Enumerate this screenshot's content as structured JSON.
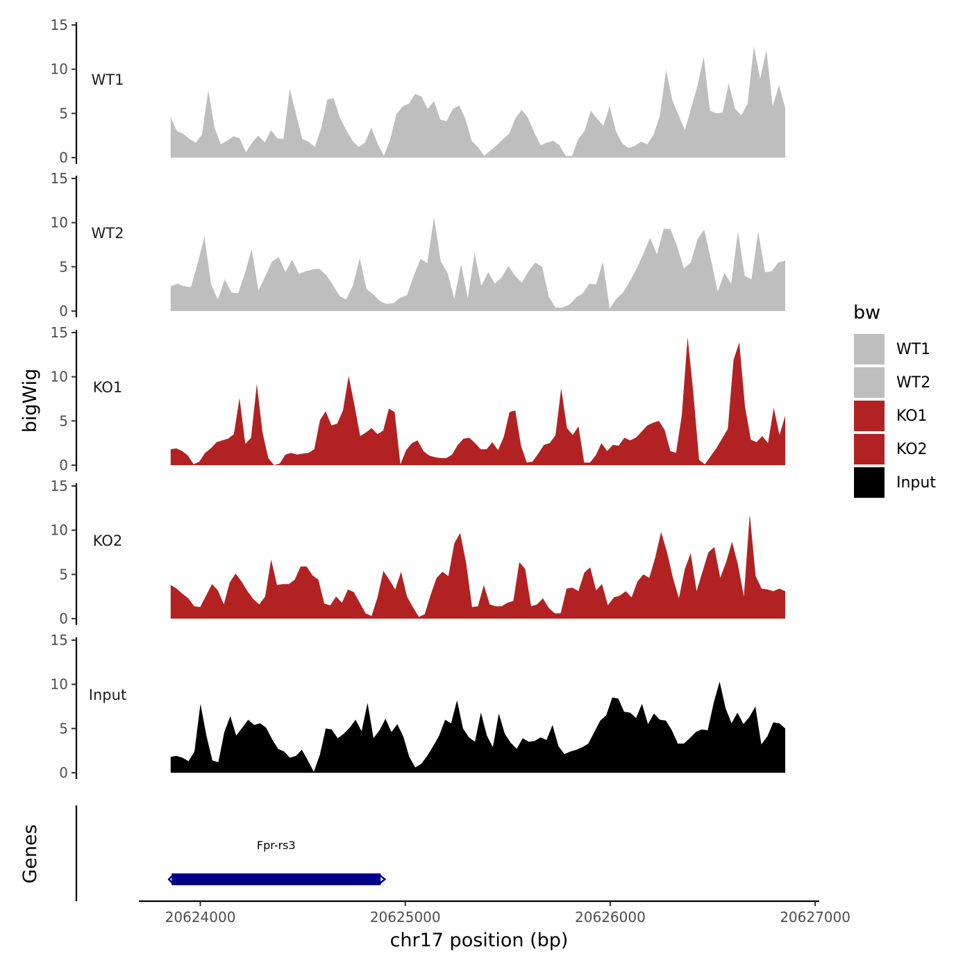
{
  "chart_data": {
    "type": "area",
    "ylabel": "bigWig",
    "xlabel": "chr17 position (bp)",
    "ylim": [
      0,
      15
    ],
    "xlim": [
      20623700,
      20627020
    ],
    "ytick_labels": [
      "0",
      "5",
      "10",
      "15"
    ],
    "x_ticks": [
      20624000,
      20625000,
      20626000,
      20627000
    ],
    "x_tick_labels": [
      "20624000",
      "20625000",
      "20626000",
      "20627000"
    ],
    "x_start": 20623855,
    "x_step": 30,
    "genes_label": "Genes",
    "legend": {
      "title": "bw",
      "placement": "right",
      "entries": [
        {
          "name": "WT1",
          "color": "#bebebe"
        },
        {
          "name": "WT2",
          "color": "#bebebe"
        },
        {
          "name": "KO1",
          "color": "#b22222"
        },
        {
          "name": "KO2",
          "color": "#b22222"
        },
        {
          "name": "Input",
          "color": "#000000"
        }
      ]
    },
    "series": [
      {
        "name": "WT1",
        "color": "#bebebe",
        "values": [
          4.6,
          3.0,
          2.7,
          2.1,
          1.7,
          2.6,
          7.6,
          3.4,
          1.5,
          1.9,
          2.4,
          2.2,
          0.6,
          1.7,
          2.5,
          1.7,
          3.1,
          2.2,
          2.1,
          7.8,
          4.9,
          2.1,
          1.8,
          1.2,
          3.3,
          6.6,
          6.7,
          4.5,
          3.1,
          1.9,
          1.2,
          1.7,
          3.4,
          1.6,
          0.2,
          2.0,
          4.9,
          5.8,
          6.1,
          7.2,
          6.9,
          5.5,
          6.4,
          4.3,
          4.1,
          5.5,
          5.9,
          4.4,
          1.9,
          1.2,
          0.2,
          0.8,
          1.4,
          2.1,
          2.7,
          4.5,
          5.4,
          4.5,
          2.8,
          1.4,
          1.7,
          1.9,
          1.4,
          0.2,
          0.2,
          2.1,
          3.0,
          5.3,
          4.4,
          3.6,
          5.8,
          3.0,
          1.6,
          1.1,
          1.3,
          1.8,
          1.5,
          2.6,
          4.7,
          9.9,
          6.5,
          4.8,
          3.1,
          5.6,
          8.1,
          11.4,
          5.3,
          5.0,
          5.1,
          8.4,
          5.5,
          4.8,
          6.1,
          12.6,
          8.9,
          12.2,
          5.8,
          8.2,
          5.6
        ]
      },
      {
        "name": "WT2",
        "color": "#bebebe",
        "values": [
          2.8,
          3.1,
          2.8,
          2.7,
          5.4,
          8.4,
          3.0,
          1.3,
          3.6,
          2.1,
          2.0,
          4.3,
          7.0,
          2.3,
          3.9,
          5.6,
          6.1,
          4.4,
          5.8,
          4.2,
          4.5,
          4.7,
          4.8,
          4.1,
          3.0,
          1.7,
          1.3,
          2.9,
          6.0,
          2.5,
          1.9,
          1.1,
          0.8,
          0.9,
          1.5,
          1.8,
          4.0,
          5.9,
          5.4,
          10.6,
          5.6,
          4.3,
          1.4,
          5.3,
          1.4,
          6.6,
          2.8,
          4.4,
          3.1,
          3.8,
          5.1,
          4.0,
          3.2,
          4.5,
          5.5,
          5.0,
          1.6,
          0.4,
          0.4,
          0.7,
          1.5,
          2.0,
          3.1,
          3.0,
          5.6,
          0.3,
          1.4,
          2.1,
          3.4,
          4.8,
          6.5,
          8.3,
          6.4,
          9.3,
          9.3,
          7.3,
          4.8,
          5.5,
          8.1,
          9.2,
          5.8,
          2.2,
          4.3,
          3.1,
          9.0,
          4.0,
          3.6,
          9.0,
          4.4,
          4.5,
          5.5,
          5.7
        ]
      },
      {
        "name": "KO1",
        "color": "#b22222",
        "values": [
          1.8,
          1.9,
          1.6,
          1.1,
          0.1,
          0.4,
          1.4,
          1.9,
          2.6,
          2.8,
          3.0,
          3.5,
          7.6,
          2.4,
          3.1,
          9.2,
          3.7,
          0.8,
          0.0,
          0.2,
          1.2,
          1.4,
          1.2,
          1.3,
          1.4,
          1.8,
          5.1,
          6.1,
          4.5,
          4.7,
          6.2,
          10.1,
          6.8,
          3.3,
          3.7,
          4.2,
          3.5,
          3.9,
          6.4,
          6.0,
          0.1,
          1.7,
          2.5,
          2.8,
          1.6,
          1.1,
          0.9,
          0.8,
          0.8,
          1.2,
          2.3,
          3.0,
          3.1,
          2.5,
          1.8,
          1.8,
          2.6,
          1.7,
          3.2,
          6.0,
          6.2,
          2.2,
          0.3,
          0.4,
          1.3,
          2.3,
          2.5,
          3.4,
          8.7,
          4.2,
          3.4,
          4.4,
          0.3,
          0.3,
          1.1,
          2.5,
          1.6,
          2.3,
          2.2,
          3.1,
          2.8,
          3.1,
          3.8,
          4.5,
          4.8,
          5.0,
          4.0,
          1.6,
          1.4,
          5.7,
          14.5,
          8.2,
          0.6,
          0.1,
          1.0,
          1.9,
          3.0,
          4.1,
          11.9,
          13.9,
          6.6,
          2.9,
          2.6,
          3.3,
          2.5,
          6.5,
          3.4,
          5.6
        ]
      },
      {
        "name": "KO2",
        "color": "#b22222",
        "values": [
          3.8,
          3.4,
          2.8,
          2.3,
          1.4,
          1.3,
          2.6,
          3.9,
          3.2,
          1.6,
          4.1,
          5.1,
          4.2,
          3.1,
          2.2,
          1.6,
          2.5,
          6.7,
          3.8,
          3.9,
          3.9,
          4.4,
          5.9,
          5.9,
          4.9,
          4.4,
          1.7,
          1.5,
          2.5,
          1.8,
          3.3,
          3.0,
          1.8,
          0.6,
          0.3,
          2.4,
          5.4,
          4.4,
          3.3,
          5.3,
          2.5,
          1.3,
          0.2,
          0.5,
          2.7,
          4.6,
          5.3,
          4.8,
          8.5,
          9.7,
          6.3,
          1.3,
          1.4,
          3.8,
          1.6,
          1.4,
          1.4,
          1.8,
          2.0,
          6.4,
          5.6,
          1.4,
          1.6,
          2.3,
          1.2,
          0.6,
          0.6,
          3.4,
          3.5,
          3.1,
          5.2,
          5.8,
          3.2,
          3.9,
          1.5,
          2.4,
          2.6,
          3.1,
          2.4,
          4.2,
          5.0,
          4.6,
          6.9,
          9.8,
          7.5,
          4.6,
          2.3,
          5.6,
          7.4,
          3.1,
          5.3,
          7.5,
          8.1,
          4.6,
          6.4,
          8.7,
          6.1,
          2.5,
          11.8,
          4.8,
          3.4,
          3.3,
          3.1,
          3.4,
          3.1
        ]
      },
      {
        "name": "Input",
        "color": "#000000",
        "values": [
          1.8,
          1.9,
          1.7,
          1.3,
          2.4,
          7.8,
          4.2,
          1.4,
          1.2,
          4.6,
          6.4,
          4.2,
          5.1,
          6.0,
          5.4,
          5.6,
          5.1,
          3.8,
          2.7,
          2.4,
          1.7,
          1.9,
          2.6,
          1.4,
          0.1,
          2.0,
          5.0,
          4.9,
          3.9,
          4.4,
          5.1,
          6.0,
          4.7,
          7.9,
          3.9,
          4.8,
          6.1,
          4.6,
          5.5,
          4.1,
          1.8,
          0.6,
          1.0,
          1.9,
          3.0,
          4.2,
          6.0,
          5.6,
          8.2,
          5.0,
          4.0,
          3.5,
          6.8,
          4.2,
          2.9,
          6.7,
          4.4,
          3.4,
          2.7,
          3.9,
          3.5,
          3.6,
          4.0,
          3.7,
          5.4,
          3.0,
          2.1,
          2.4,
          2.6,
          2.9,
          3.3,
          4.6,
          5.9,
          6.5,
          8.5,
          8.4,
          6.9,
          6.8,
          6.2,
          7.8,
          5.5,
          6.7,
          6.0,
          5.9,
          4.8,
          3.3,
          3.3,
          3.9,
          4.6,
          4.9,
          4.8,
          7.9,
          10.3,
          7.3,
          5.6,
          6.8,
          5.5,
          6.3,
          7.5,
          3.2,
          4.1,
          5.7,
          5.6,
          5.0
        ]
      }
    ],
    "genes": [
      {
        "name": "Fpr-rs3",
        "start": 20623860,
        "end": 20624880,
        "color": "#00008b"
      }
    ]
  }
}
